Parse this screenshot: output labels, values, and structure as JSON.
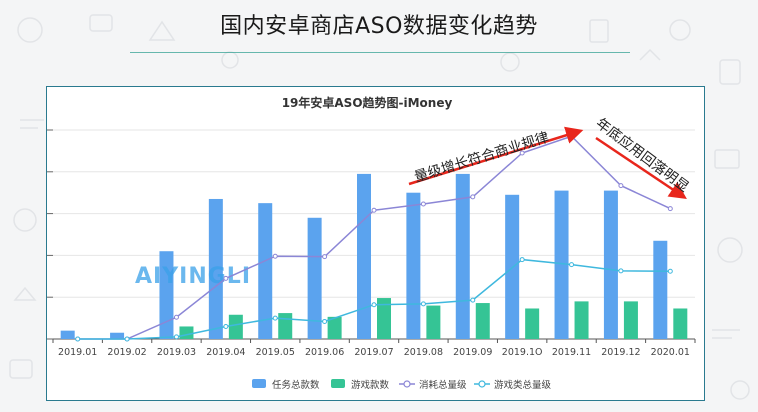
{
  "slide": {
    "title": "国内安卓商店ASO数据变化趋势"
  },
  "chart_data": {
    "type": "bar",
    "title": "19年安卓ASO趋势图-iMoney",
    "categories": [
      "2019.01",
      "2019.02",
      "2019.03",
      "2019.04",
      "2019.05",
      "2019.06",
      "2019.07",
      "2019.08",
      "2019.09",
      "2019.1O",
      "2019.11",
      "2019.12",
      "2020.01"
    ],
    "ylim": [
      0,
      5
    ],
    "grid": true,
    "legend_position": "bottom",
    "series": [
      {
        "name": "任务总款数",
        "kind": "bar",
        "color": "#5ba3ee",
        "values": [
          0.2,
          0.15,
          2.1,
          3.35,
          3.25,
          2.9,
          3.95,
          3.5,
          3.95,
          3.45,
          3.55,
          3.55,
          2.35
        ]
      },
      {
        "name": "游戏款数",
        "kind": "bar",
        "color": "#35c495",
        "values": [
          0,
          0,
          0.3,
          0.58,
          0.62,
          0.53,
          0.98,
          0.8,
          0.86,
          0.73,
          0.9,
          0.9,
          0.73
        ]
      },
      {
        "name": "消耗总量级",
        "kind": "line",
        "color": "#8b86d6",
        "values": [
          0,
          0,
          0.52,
          1.45,
          1.98,
          1.97,
          3.08,
          3.23,
          3.4,
          4.45,
          4.85,
          3.67,
          3.12
        ]
      },
      {
        "name": "游戏类总量级",
        "kind": "line",
        "color": "#3fb8de",
        "values": [
          0,
          0,
          0.05,
          0.3,
          0.5,
          0.42,
          0.82,
          0.84,
          0.93,
          1.9,
          1.78,
          1.63,
          1.62
        ]
      }
    ],
    "annotations": [
      {
        "text": "量级增长符合商业规律"
      },
      {
        "text": "年底应用回落明显"
      }
    ],
    "watermark": "AIYINGLI"
  }
}
